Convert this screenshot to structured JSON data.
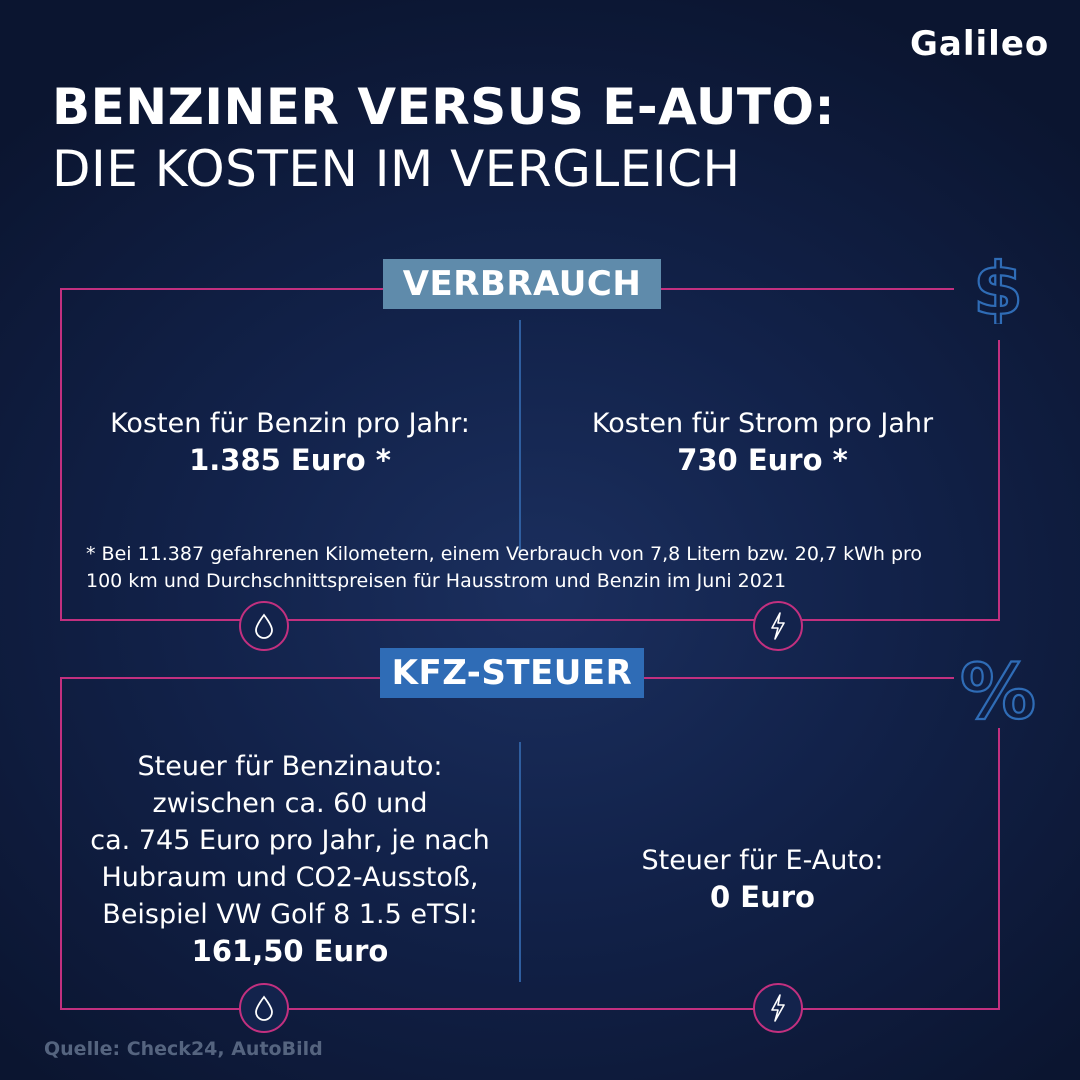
{
  "brand": {
    "logo_text": "Galileo"
  },
  "title": {
    "line1": "BENZINER VERSUS E-AUTO:",
    "line2": "DIE KOSTEN IM VERGLEICH"
  },
  "colors": {
    "frame": "#c2307f",
    "divider": "#2f5e9f",
    "label_verbrauch": "#5f8bab",
    "label_steuer": "#2f6cb6"
  },
  "verbrauch": {
    "label": "VERBRAUCH",
    "icon": "dollar-icon",
    "left": {
      "text": "Kosten für Benzin pro Jahr:",
      "value": "1.385 Euro *",
      "icon": "drop-icon"
    },
    "right": {
      "text": "Kosten für Strom pro Jahr",
      "value": "730 Euro *",
      "icon": "lightning-icon"
    },
    "footnote_line1": "* Bei 11.387 gefahrenen Kilometern, einem Verbrauch von 7,8 Litern bzw. 20,7 kWh pro",
    "footnote_line2": "100 km und Durchschnittspreisen für Hausstrom und Benzin im Juni 2021"
  },
  "steuer": {
    "label": "KFZ-STEUER",
    "icon": "percent-icon",
    "left": {
      "line1": "Steuer für Benzinauto:",
      "line2": "zwischen ca. 60 und",
      "line3": "ca. 745 Euro pro Jahr, je nach",
      "line4": "Hubraum und CO2-Ausstoß,",
      "line5": "Beispiel VW Golf 8 1.5 eTSI:",
      "value": "161,50 Euro",
      "icon": "drop-icon"
    },
    "right": {
      "text": "Steuer für E-Auto:",
      "value": "0 Euro",
      "icon": "lightning-icon"
    }
  },
  "source": "Quelle: Check24,  AutoBild"
}
